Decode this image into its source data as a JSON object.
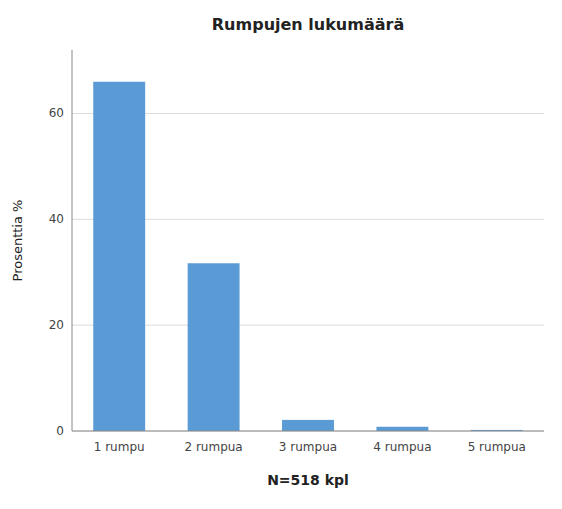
{
  "chart_data": {
    "type": "bar",
    "title": "Rumpujen lukumäärä",
    "categories": [
      "1 rumpu",
      "2 rumpua",
      "3 rumpua",
      "4 rumpua",
      "5 rumpua"
    ],
    "values": [
      66.0,
      31.7,
      2.1,
      0.8,
      0.2
    ],
    "color": "#5B9BD5",
    "xlabel": "N=518 kpl",
    "ylabel": "Prosenttia %",
    "ylim": [
      0,
      72
    ],
    "yticks": [
      0,
      20,
      40,
      60
    ],
    "grid": true
  }
}
